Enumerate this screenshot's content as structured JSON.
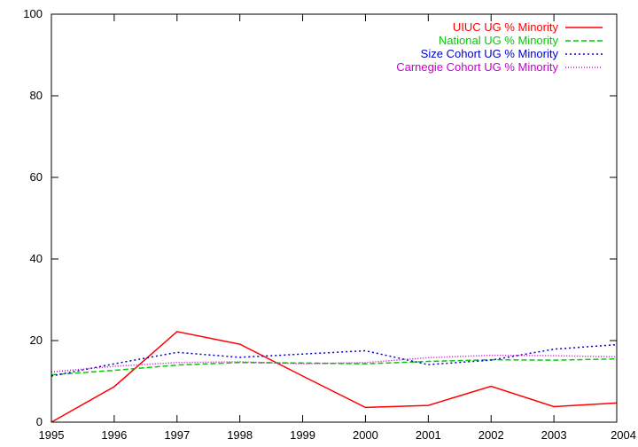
{
  "chart_data": {
    "type": "line",
    "title": "",
    "xlabel": "",
    "ylabel": "",
    "xlim": [
      1995,
      2004
    ],
    "ylim": [
      0,
      100
    ],
    "xticks": [
      "1995",
      "1996",
      "1997",
      "1998",
      "1999",
      "2000",
      "2001",
      "2002",
      "2003",
      "2004"
    ],
    "yticks": [
      "0",
      "20",
      "40",
      "60",
      "80",
      "100"
    ],
    "grid": false,
    "legend_position": "top-right",
    "x": [
      1995,
      1996,
      1997,
      1998,
      1999,
      2000,
      2001,
      2002,
      2003,
      2004
    ],
    "series": [
      {
        "name": "UIUC UG % Minority",
        "color": "#ff0000",
        "style": "solid",
        "values": [
          0,
          8.7,
          22.2,
          19.1,
          11.3,
          3.6,
          4.1,
          8.8,
          3.8,
          4.7
        ]
      },
      {
        "name": "National UG % Minority",
        "color": "#00cc00",
        "style": "dashed",
        "values": [
          11.6,
          12.7,
          14.0,
          14.6,
          14.5,
          14.3,
          14.9,
          15.3,
          15.2,
          15.5
        ]
      },
      {
        "name": "Size Cohort UG % Minority",
        "color": "#0000cc",
        "style": "dotted",
        "values": [
          11.3,
          14.3,
          17.1,
          15.9,
          16.7,
          17.5,
          14.1,
          15.2,
          17.9,
          19.0
        ]
      },
      {
        "name": "Carnegie Cohort UG % Minority",
        "color": "#cc00cc",
        "style": "fine-dotted",
        "values": [
          12.3,
          13.7,
          14.6,
          14.8,
          14.3,
          14.6,
          15.8,
          16.4,
          16.3,
          16.0
        ]
      }
    ]
  }
}
